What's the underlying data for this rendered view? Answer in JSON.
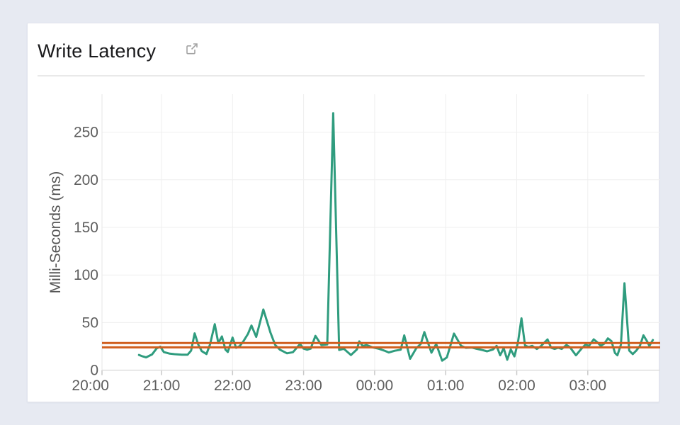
{
  "page": {
    "background_color": "#e7eaf2"
  },
  "panel": {
    "title": "Write Latency",
    "title_color": "#1b1b1d",
    "icon": "external-link-icon"
  },
  "chart_data": {
    "type": "line",
    "title": "Write Latency",
    "xlabel": "",
    "ylabel": "Milli-Seconds (ms)",
    "unit": "ms",
    "ylim": [
      0,
      290
    ],
    "yticks": [
      0,
      50,
      100,
      150,
      200,
      250
    ],
    "xticks": [
      "20:00",
      "21:00",
      "22:00",
      "23:00",
      "00:00",
      "01:00",
      "02:00",
      "03:00"
    ],
    "x_start": "20:10",
    "x_end": "04:01",
    "grid": true,
    "legend": "none",
    "line_color": "#2f9c7e",
    "reference_lines": [
      {
        "name": "upper-threshold",
        "value": 28.5,
        "color": "#d05e1e"
      },
      {
        "name": "lower-threshold",
        "value": 24.0,
        "color": "#d05e1e"
      }
    ],
    "series": [
      {
        "name": "Write Latency",
        "color": "#2f9c7e",
        "points": [
          [
            "20:41",
            16
          ],
          [
            "20:44",
            14.5
          ],
          [
            "20:47",
            13.5
          ],
          [
            "20:52",
            16.5
          ],
          [
            "20:56",
            23
          ],
          [
            "20:59",
            24.7
          ],
          [
            "21:02",
            19
          ],
          [
            "21:07",
            17.3
          ],
          [
            "21:11",
            16.8
          ],
          [
            "21:17",
            16.3
          ],
          [
            "21:22",
            16.2
          ],
          [
            "21:25",
            20.5
          ],
          [
            "21:28",
            38.7
          ],
          [
            "21:31",
            27
          ],
          [
            "21:34",
            20
          ],
          [
            "21:38",
            17
          ],
          [
            "21:41",
            27
          ],
          [
            "21:45",
            48.3
          ],
          [
            "21:48",
            28.4
          ],
          [
            "21:51",
            35.4
          ],
          [
            "21:54",
            21.6
          ],
          [
            "21:56",
            19.1
          ],
          [
            "22:00",
            34.2
          ],
          [
            "22:03",
            23.5
          ],
          [
            "22:06",
            25.2
          ],
          [
            "22:09",
            30
          ],
          [
            "22:13",
            38
          ],
          [
            "22:16",
            46.9
          ],
          [
            "22:20",
            35
          ],
          [
            "22:26",
            63.8
          ],
          [
            "22:32",
            39.5
          ],
          [
            "22:36",
            26.5
          ],
          [
            "22:40",
            21.5
          ],
          [
            "22:46",
            17.7
          ],
          [
            "22:51",
            18.9
          ],
          [
            "22:57",
            27.5
          ],
          [
            "23:00",
            22.6
          ],
          [
            "23:03",
            21.5
          ],
          [
            "23:06",
            22.6
          ],
          [
            "23:10",
            36
          ],
          [
            "23:15",
            26.4
          ],
          [
            "23:20",
            27
          ],
          [
            "23:25",
            270
          ],
          [
            "23:30",
            21.3
          ],
          [
            "23:34",
            22.5
          ],
          [
            "23:40",
            15.9
          ],
          [
            "23:45",
            21.7
          ],
          [
            "23:47",
            30.3
          ],
          [
            "23:50",
            25.2
          ],
          [
            "23:53",
            26.5
          ],
          [
            "23:58",
            24
          ],
          [
            "00:03",
            22.7
          ],
          [
            "00:08",
            20.6
          ],
          [
            "00:12",
            18.6
          ],
          [
            "00:17",
            20.4
          ],
          [
            "00:22",
            21.5
          ],
          [
            "00:25",
            36.5
          ],
          [
            "00:30",
            12
          ],
          [
            "00:35",
            22.7
          ],
          [
            "00:39",
            27.7
          ],
          [
            "00:42",
            40
          ],
          [
            "00:45",
            29
          ],
          [
            "00:48",
            18.4
          ],
          [
            "00:52",
            27.5
          ],
          [
            "00:57",
            10
          ],
          [
            "01:01",
            13.5
          ],
          [
            "01:07",
            38.5
          ],
          [
            "01:10",
            32
          ],
          [
            "01:13",
            25.5
          ],
          [
            "01:17",
            23.5
          ],
          [
            "01:22",
            23.8
          ],
          [
            "01:26",
            22.5
          ],
          [
            "01:31",
            21.1
          ],
          [
            "01:35",
            19.8
          ],
          [
            "01:40",
            21.8
          ],
          [
            "01:43",
            25.5
          ],
          [
            "01:46",
            15.6
          ],
          [
            "01:49",
            23
          ],
          [
            "01:52",
            11
          ],
          [
            "01:55",
            21.8
          ],
          [
            "01:58",
            14.4
          ],
          [
            "02:01",
            29
          ],
          [
            "02:04",
            54.5
          ],
          [
            "02:07",
            26
          ],
          [
            "02:10",
            24.3
          ],
          [
            "02:13",
            25.5
          ],
          [
            "02:17",
            22.3
          ],
          [
            "02:20",
            24.8
          ],
          [
            "02:23",
            28.5
          ],
          [
            "02:26",
            32.3
          ],
          [
            "02:29",
            23.6
          ],
          [
            "02:32",
            22.3
          ],
          [
            "02:35",
            23.6
          ],
          [
            "02:38",
            22.3
          ],
          [
            "02:42",
            26.5
          ],
          [
            "02:45",
            24
          ],
          [
            "02:50",
            15.6
          ],
          [
            "02:55",
            23
          ],
          [
            "02:58",
            26.8
          ],
          [
            "03:01",
            25.5
          ],
          [
            "03:05",
            32.4
          ],
          [
            "03:08",
            29.3
          ],
          [
            "03:11",
            25.5
          ],
          [
            "03:14",
            28
          ],
          [
            "03:17",
            33.4
          ],
          [
            "03:20",
            30.5
          ],
          [
            "03:23",
            18.1
          ],
          [
            "03:25",
            15.6
          ],
          [
            "03:28",
            26.8
          ],
          [
            "03:31",
            91.3
          ],
          [
            "03:35",
            20.6
          ],
          [
            "03:38",
            16.9
          ],
          [
            "03:41",
            20.6
          ],
          [
            "03:44",
            25.5
          ],
          [
            "03:47",
            36.6
          ],
          [
            "03:50",
            30.5
          ],
          [
            "03:52",
            25.5
          ],
          [
            "03:55",
            31.7
          ]
        ]
      }
    ]
  }
}
